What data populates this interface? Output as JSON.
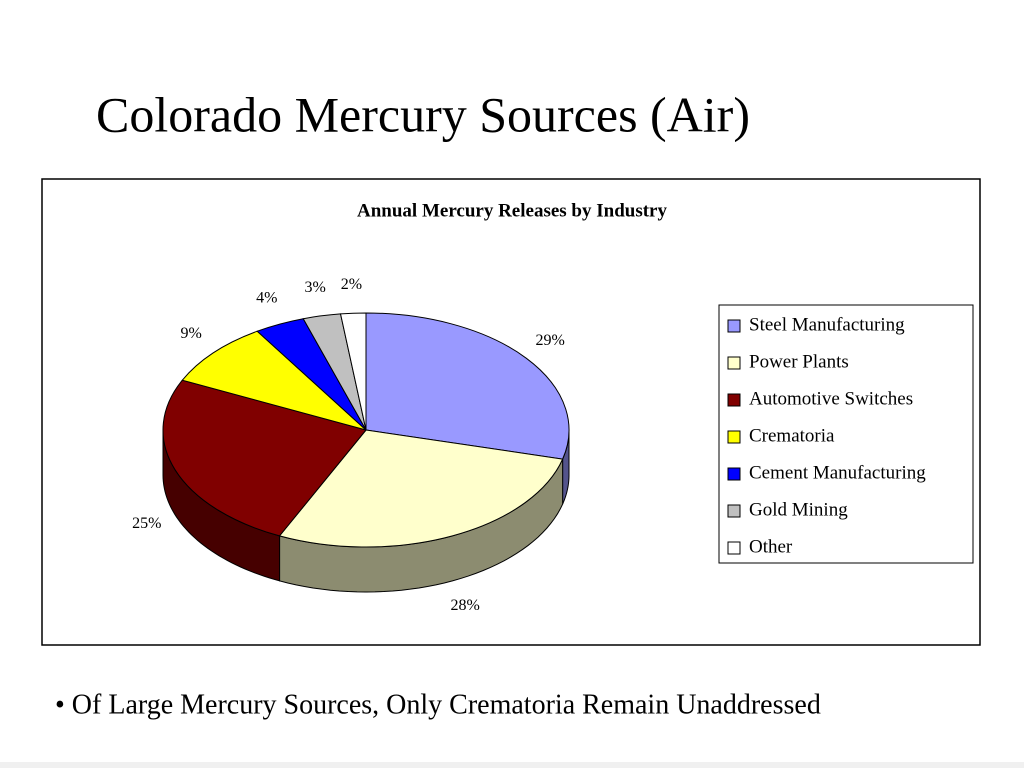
{
  "title": "Colorado Mercury Sources (Air)",
  "chart_data": {
    "type": "pie",
    "title": "Annual Mercury Releases by Industry",
    "categories": [
      "Steel Manufacturing",
      "Power Plants",
      "Automotive Switches",
      "Crematoria",
      "Cement Manufacturing",
      "Gold Mining",
      "Other"
    ],
    "values": [
      29,
      28,
      25,
      9,
      4,
      3,
      2
    ],
    "value_labels": [
      "29%",
      "28%",
      "25%",
      "9%",
      "4%",
      "3%",
      "2%"
    ],
    "colors": [
      "#9999ff",
      "#ffffcc",
      "#800000",
      "#ffff00",
      "#0000ff",
      "#c0c0c0",
      "#ffffff"
    ],
    "legend": "right"
  },
  "bullet": "• Of Large Mercury Sources, Only Crematoria Remain Unaddressed"
}
